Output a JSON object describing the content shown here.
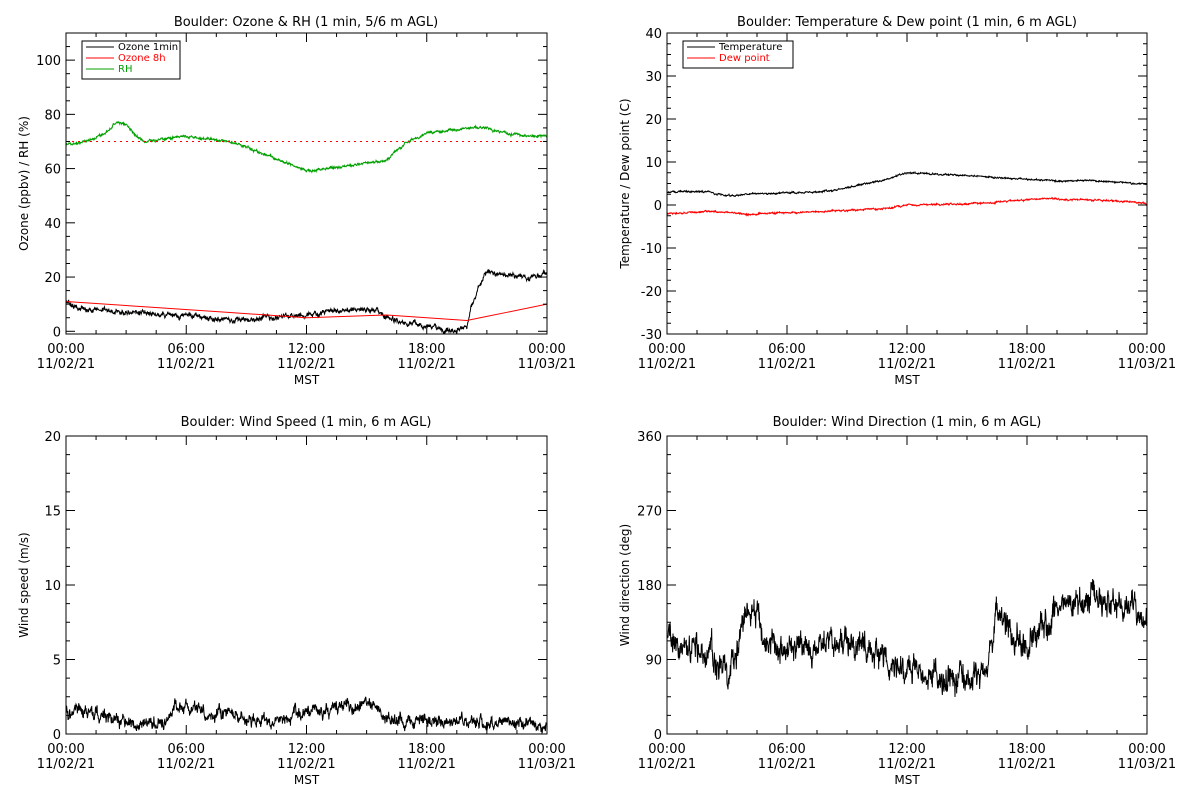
{
  "figure": {
    "panels": [
      {
        "title": "Boulder: Ozone & RH (1 min, 5/6 m AGL)"
      },
      {
        "title": "Boulder: Temperature & Dew point (1 min, 6 m AGL)"
      },
      {
        "title": "Boulder: Wind Speed (1 min, 6 m AGL)"
      },
      {
        "title": "Boulder: Wind Direction (1 min, 6 m AGL)"
      }
    ]
  },
  "chart_data": [
    {
      "type": "line",
      "title": "Boulder: Ozone & RH (1 min, 5/6 m AGL)",
      "xlabel": "MST",
      "ylabel": "Ozone (ppbv) / RH (%)",
      "xlim": [
        0,
        24
      ],
      "ylim": [
        -1,
        110
      ],
      "x_ticks": [
        0,
        6,
        12,
        18,
        24
      ],
      "x_tick_labels": [
        [
          "00:00",
          "11/02/21"
        ],
        [
          "06:00",
          "11/02/21"
        ],
        [
          "12:00",
          "11/02/21"
        ],
        [
          "18:00",
          "11/02/21"
        ],
        [
          "00:00",
          "11/03/21"
        ]
      ],
      "y_ticks": [
        0,
        20,
        40,
        60,
        80,
        100
      ],
      "y_tick_labels": [
        "0",
        "20",
        "40",
        "60",
        "80",
        "100"
      ],
      "legend_position": "top-left",
      "series": [
        {
          "name": "Ozone 1min",
          "color": "#000000",
          "noise": 1.0,
          "x": [
            0,
            0.5,
            1,
            2,
            3,
            4,
            5,
            6,
            7,
            8,
            9,
            10,
            11,
            12,
            13,
            14,
            15,
            15.5,
            16,
            17,
            18,
            19,
            20,
            20.2,
            20.4,
            20.6,
            21,
            22,
            23,
            24
          ],
          "y": [
            11,
            9,
            8,
            8,
            7,
            7,
            6,
            6,
            5,
            4,
            4,
            5,
            5,
            6,
            7,
            8,
            8,
            8,
            5,
            3,
            2,
            0,
            1,
            8,
            12,
            16,
            22,
            21,
            20,
            21
          ]
        },
        {
          "name": "Ozone 8h",
          "color": "#ff0000",
          "noise": 0,
          "x": [
            0,
            4,
            8,
            12,
            16,
            20,
            21,
            22,
            24
          ],
          "y": [
            11,
            9,
            7,
            5,
            6,
            4,
            5.5,
            7,
            10
          ]
        },
        {
          "name": "RH",
          "color": "#00a000",
          "noise": 0.5,
          "x": [
            0,
            1,
            2,
            2.5,
            3,
            3.5,
            4,
            5,
            6,
            7,
            8,
            9,
            10,
            11,
            12,
            13,
            14,
            15,
            16,
            17,
            18,
            19,
            20,
            21,
            22,
            23,
            24
          ],
          "y": [
            69,
            70,
            73,
            77,
            76,
            72,
            70,
            71,
            72,
            71,
            70,
            68,
            65,
            62,
            59,
            60,
            61,
            62,
            63,
            70,
            73,
            74,
            75,
            75,
            73,
            72,
            72
          ]
        },
        {
          "name": "",
          "color": "#ff0000",
          "dotted": true,
          "noise": 0,
          "x": [
            0,
            24
          ],
          "y": [
            70,
            70
          ]
        }
      ]
    },
    {
      "type": "line",
      "title": "Boulder: Temperature & Dew point (1 min, 6 m AGL)",
      "xlabel": "MST",
      "ylabel": "Temperature / Dew point (C)",
      "xlim": [
        0,
        24
      ],
      "ylim": [
        -30,
        40
      ],
      "x_ticks": [
        0,
        6,
        12,
        18,
        24
      ],
      "x_tick_labels": [
        [
          "00:00",
          "11/02/21"
        ],
        [
          "06:00",
          "11/02/21"
        ],
        [
          "12:00",
          "11/02/21"
        ],
        [
          "18:00",
          "11/02/21"
        ],
        [
          "00:00",
          "11/03/21"
        ]
      ],
      "y_ticks": [
        -30,
        -20,
        -10,
        0,
        10,
        20,
        30,
        40
      ],
      "y_tick_labels": [
        "-30",
        "-20",
        "-10",
        "0",
        "10",
        "20",
        "30",
        "40"
      ],
      "legend_position": "top-left",
      "series": [
        {
          "name": "Temperature",
          "color": "#000000",
          "noise": 0.2,
          "x": [
            0,
            1,
            2,
            3,
            4,
            5,
            6,
            7,
            8,
            9,
            10,
            11,
            12,
            13,
            14,
            15,
            16,
            17,
            18,
            19,
            20,
            21,
            22,
            23,
            24
          ],
          "y": [
            3,
            3.2,
            3,
            2.2,
            2.5,
            2.7,
            2.8,
            3,
            3.2,
            4,
            5,
            6,
            7.5,
            7.3,
            7,
            7,
            6.5,
            6.2,
            6,
            5.8,
            5.6,
            5.7,
            5.5,
            5.2,
            4.8
          ]
        },
        {
          "name": "Dew point",
          "color": "#ff0000",
          "noise": 0.2,
          "x": [
            0,
            1,
            2,
            3,
            4,
            5,
            6,
            7,
            8,
            9,
            10,
            11,
            12,
            13,
            14,
            15,
            16,
            17,
            18,
            19,
            20,
            21,
            22,
            23,
            24
          ],
          "y": [
            -2,
            -1.8,
            -1.5,
            -1.8,
            -2.2,
            -2,
            -1.8,
            -1.6,
            -1.5,
            -1.2,
            -1,
            -0.8,
            0,
            0,
            0.2,
            0.3,
            0.5,
            0.8,
            1.2,
            1.5,
            1.3,
            1.2,
            1,
            0.7,
            0.3
          ]
        }
      ]
    },
    {
      "type": "line",
      "title": "Boulder: Wind Speed (1 min, 6 m AGL)",
      "xlabel": "MST",
      "ylabel": "Wind speed (m/s)",
      "xlim": [
        0,
        24
      ],
      "ylim": [
        0,
        20
      ],
      "x_ticks": [
        0,
        6,
        12,
        18,
        24
      ],
      "x_tick_labels": [
        [
          "00:00",
          "11/02/21"
        ],
        [
          "06:00",
          "11/02/21"
        ],
        [
          "12:00",
          "11/02/21"
        ],
        [
          "18:00",
          "11/02/21"
        ],
        [
          "00:00",
          "11/03/21"
        ]
      ],
      "y_ticks": [
        0,
        5,
        10,
        15,
        20
      ],
      "y_tick_labels": [
        "0",
        "5",
        "10",
        "15",
        "20"
      ],
      "legend_position": "none",
      "series": [
        {
          "name": "",
          "color": "#000000",
          "noise": 0.45,
          "x": [
            0,
            1,
            2,
            3,
            4,
            5,
            5.5,
            6,
            7,
            8,
            9,
            10,
            11,
            12,
            13,
            14,
            15,
            15.5,
            16,
            17,
            18,
            19,
            20,
            21,
            22,
            23,
            24
          ],
          "y": [
            1.6,
            1.4,
            1.2,
            0.7,
            0.8,
            0.9,
            1.8,
            1.7,
            1.5,
            1.3,
            1.0,
            0.8,
            1.1,
            1.5,
            1.6,
            1.8,
            2.0,
            1.6,
            1.1,
            1.0,
            0.9,
            0.7,
            0.7,
            0.8,
            0.9,
            0.6,
            0.5
          ]
        }
      ]
    },
    {
      "type": "line",
      "title": "Boulder: Wind Direction (1 min, 6 m AGL)",
      "xlabel": "MST",
      "ylabel": "Wind direction (deg)",
      "xlim": [
        0,
        24
      ],
      "ylim": [
        0,
        360
      ],
      "x_ticks": [
        0,
        6,
        12,
        18,
        24
      ],
      "x_tick_labels": [
        [
          "00:00",
          "11/02/21"
        ],
        [
          "06:00",
          "11/02/21"
        ],
        [
          "12:00",
          "11/02/21"
        ],
        [
          "18:00",
          "11/02/21"
        ],
        [
          "00:00",
          "11/03/21"
        ]
      ],
      "y_ticks": [
        0,
        90,
        180,
        270,
        360
      ],
      "y_tick_labels": [
        "0",
        "90",
        "180",
        "270",
        "360"
      ],
      "legend_position": "none",
      "series": [
        {
          "name": "",
          "color": "#000000",
          "noise": 18,
          "x": [
            0,
            1,
            2,
            3,
            3.5,
            4,
            4.5,
            5,
            6,
            7,
            8,
            9,
            10,
            11,
            12,
            13,
            14,
            15,
            16,
            16.5,
            17,
            18,
            19,
            20,
            21,
            22,
            23,
            24
          ],
          "y": [
            105,
            110,
            95,
            80,
            100,
            160,
            145,
            100,
            100,
            105,
            110,
            110,
            100,
            90,
            80,
            75,
            70,
            65,
            80,
            140,
            130,
            110,
            140,
            150,
            165,
            160,
            150,
            140
          ]
        }
      ]
    }
  ]
}
